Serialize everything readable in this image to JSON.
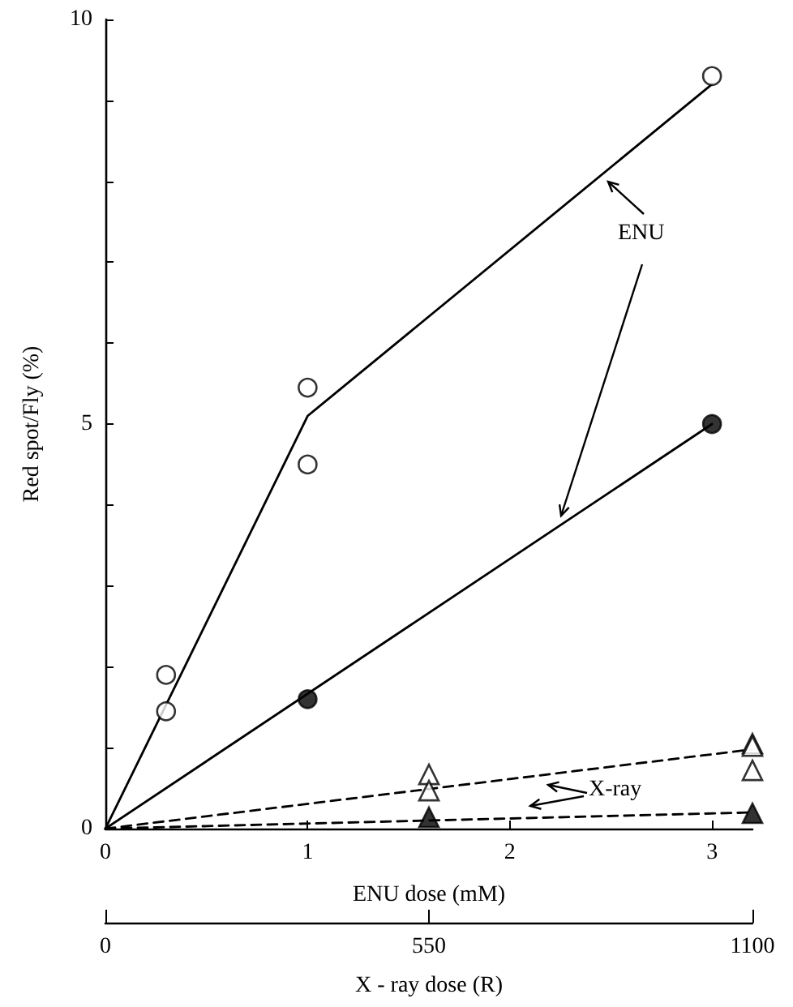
{
  "chart_data": {
    "type": "scatter",
    "xlabel": "ENU dose (mM)",
    "ylabel": "Red spot/Fly (%)",
    "x2label": "X - ray dose (R)",
    "annotations": [
      "ENU",
      "X-ray"
    ],
    "xlim": [
      0,
      3.2
    ],
    "xticks": [
      0,
      1,
      2,
      3
    ],
    "x2lim": [
      0,
      1100
    ],
    "x2ticks": [
      0,
      550,
      1100
    ],
    "ylim": [
      0,
      10
    ],
    "yticks": [
      0,
      {
        "value": 1,
        "label": null
      },
      {
        "value": 2,
        "label": null
      },
      {
        "value": 3,
        "label": null
      },
      {
        "value": 4,
        "label": null
      },
      5,
      {
        "value": 6,
        "label": null
      },
      {
        "value": 7,
        "label": null
      },
      {
        "value": 8,
        "label": null
      },
      {
        "value": 9,
        "label": null
      },
      10
    ],
    "grid": false,
    "series": [
      {
        "type": "line",
        "color": "#000000",
        "x": [
          0,
          1,
          3
        ],
        "values": [
          0,
          5.1,
          9.2
        ],
        "marker": "none",
        "line_style": "solid"
      },
      {
        "color": "#ffffff",
        "x": [
          0.3,
          0.3,
          1,
          1,
          3
        ],
        "values": [
          1.9,
          1.45,
          5.45,
          4.5,
          9.3
        ],
        "marker": "circle"
      },
      {
        "type": "line",
        "color": "#000000",
        "x": [
          0,
          3
        ],
        "values": [
          0,
          5.0
        ],
        "marker": "none",
        "line_style": "solid"
      },
      {
        "color": "#000000",
        "x": [
          1,
          3
        ],
        "values": [
          1.6,
          5.0
        ],
        "marker": "circle"
      },
      {
        "type": "line",
        "axis": "x2",
        "color": "#000000",
        "x": [
          0,
          1100
        ],
        "values": [
          0,
          0.98
        ],
        "marker": "none",
        "line_style": "dashed"
      },
      {
        "axis": "x2",
        "color": "#ffffff",
        "x": [
          550,
          550,
          1100,
          1100,
          1100
        ],
        "values": [
          0.67,
          0.47,
          1.05,
          1.02,
          0.72
        ],
        "marker": "triangle"
      },
      {
        "type": "line",
        "axis": "x2",
        "color": "#000000",
        "x": [
          0,
          1100
        ],
        "values": [
          0,
          0.2
        ],
        "marker": "none",
        "line_style": "dashed"
      },
      {
        "axis": "x2",
        "color": "#000000",
        "x": [
          550,
          1100
        ],
        "values": [
          0.14,
          0.19
        ],
        "marker": "triangle"
      }
    ]
  }
}
